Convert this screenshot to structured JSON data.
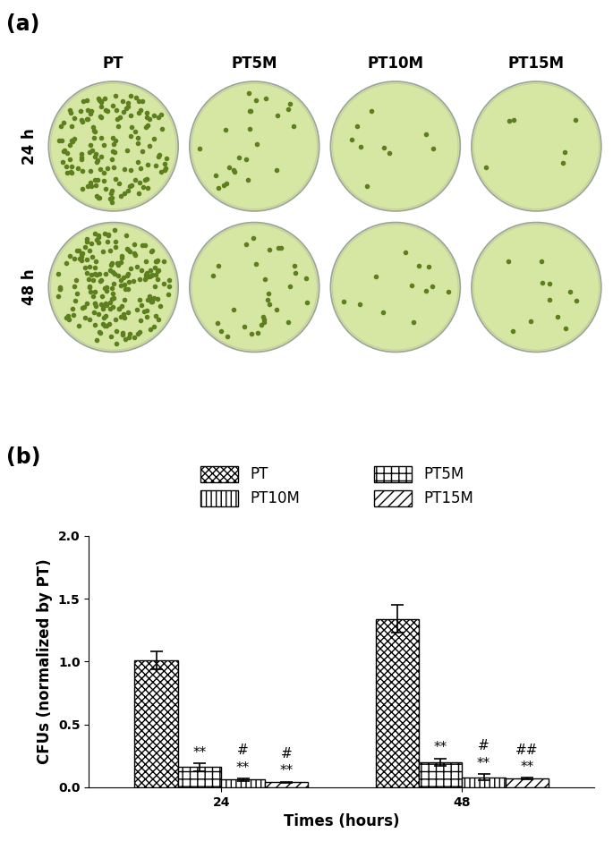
{
  "panels": {
    "a": {
      "label": "(a)",
      "columns": [
        "PT",
        "PT5M",
        "PT10M",
        "PT15M"
      ],
      "rows": [
        "24 h",
        "48 h"
      ]
    },
    "b": {
      "label": "(b)"
    }
  },
  "chart_data": {
    "type": "bar",
    "categories": [
      "24",
      "48"
    ],
    "x_label": "Times (hours)",
    "y_label": "CFUs (normalized by PT)",
    "ylim": [
      0,
      2.0
    ],
    "yticks": [
      {
        "value": 0,
        "label": "0.0"
      },
      {
        "value": 0.5,
        "label": "0.5"
      },
      {
        "value": 1.0,
        "label": "1.0"
      },
      {
        "value": 1.5,
        "label": "1.5"
      },
      {
        "value": 2.0,
        "label": "2.0"
      }
    ],
    "legend": "upper center",
    "series": [
      {
        "name": "PT",
        "color": "#ffffff",
        "values": [
          1.01,
          1.34
        ],
        "errors": [
          0.07,
          0.11
        ],
        "annotations": [
          [],
          []
        ]
      },
      {
        "name": "PT5M",
        "color": "#ffffff",
        "values": [
          0.16,
          0.2
        ],
        "errors": [
          0.03,
          0.03
        ],
        "annotations": [
          [
            "**"
          ],
          [
            "**"
          ]
        ]
      },
      {
        "name": "PT10M",
        "color": "#ffffff",
        "values": [
          0.06,
          0.08
        ],
        "errors": [
          0.01,
          0.025
        ],
        "annotations": [
          [
            "#",
            "**"
          ],
          [
            "#",
            "**"
          ]
        ]
      },
      {
        "name": "PT15M",
        "color": "#ffffff",
        "values": [
          0.04,
          0.07
        ],
        "errors": [
          0.005,
          0.005
        ],
        "annotations": [
          [
            "#",
            "**"
          ],
          [
            "##",
            "**"
          ]
        ]
      }
    ]
  }
}
